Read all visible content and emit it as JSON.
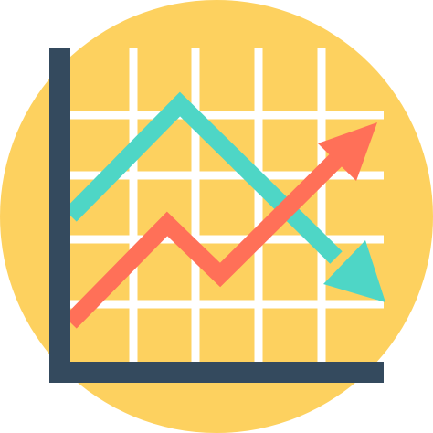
{
  "icon": {
    "name": "line-chart-trend-icon",
    "colors": {
      "background_circle": "#FDD15F",
      "grid": "#FFFFFF",
      "axes": "#344A5E",
      "falling_line": "#4ED6C6",
      "rising_line": "#FF7058"
    }
  }
}
